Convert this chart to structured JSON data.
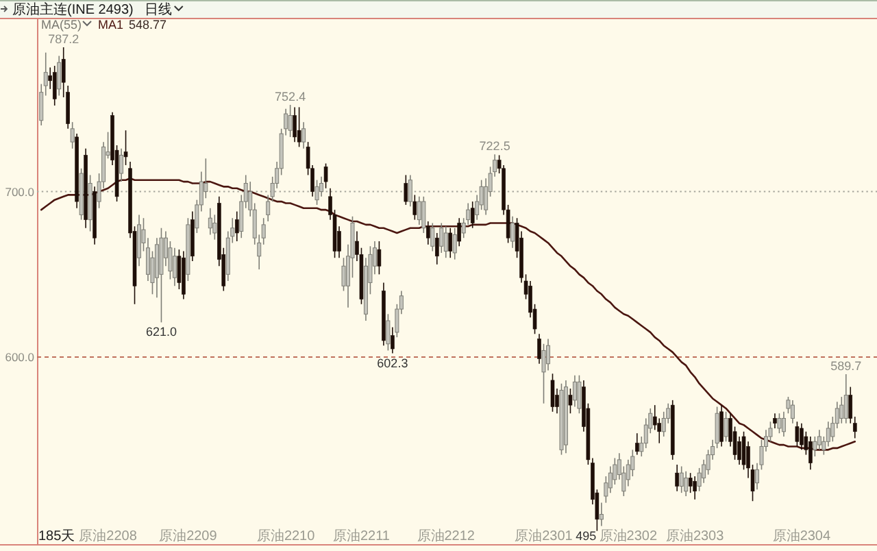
{
  "chart_data": {
    "type": "candlestick",
    "title": "原油主连(INE 2493)",
    "subtitle": "日线",
    "annotations": [
      "MA(55)",
      "548.77",
      "185天",
      {
        "text": "787.2",
        "y": 787.2
      },
      {
        "text": "621.0",
        "y": 621.0
      },
      {
        "text": "752.4",
        "y": 752.4
      },
      {
        "text": "602.3",
        "y": 602.3
      },
      {
        "text": "722.5",
        "y": 722.5
      },
      "495",
      {
        "text": "589.7",
        "y": 589.7
      }
    ],
    "categories": [
      null,
      null,
      null,
      null,
      null,
      null,
      null,
      null,
      null,
      null,
      null,
      null,
      null,
      null,
      null,
      "原油2208",
      null,
      null,
      null,
      null,
      null,
      null,
      null,
      null,
      null,
      null,
      null,
      null,
      null,
      null,
      null,
      null,
      null,
      "原油2209",
      null,
      null,
      null,
      null,
      null,
      null,
      null,
      null,
      null,
      null,
      null,
      null,
      null,
      null,
      null,
      null,
      null,
      null,
      null,
      null,
      null,
      "原油2210",
      null,
      null,
      null,
      null,
      null,
      null,
      null,
      null,
      null,
      null,
      null,
      null,
      null,
      null,
      null,
      null,
      "原油2211",
      null,
      null,
      null,
      null,
      null,
      null,
      null,
      null,
      null,
      null,
      null,
      null,
      null,
      null,
      null,
      null,
      null,
      null,
      "原油2212",
      null,
      null,
      null,
      null,
      null,
      null,
      null,
      null,
      null,
      null,
      null,
      null,
      null,
      null,
      null,
      null,
      null,
      null,
      null,
      null,
      null,
      "原油2301",
      null,
      null,
      null,
      null,
      null,
      null,
      null,
      null,
      null,
      null,
      null,
      null,
      null,
      null,
      null,
      null,
      null,
      null,
      "原油2302",
      null,
      null,
      null,
      null,
      null,
      null,
      null,
      null,
      null,
      null,
      null,
      null,
      null,
      null,
      "原油2303",
      null,
      null,
      null,
      null,
      null,
      null,
      null,
      null,
      null,
      null,
      null,
      null,
      null,
      null,
      null,
      null,
      null,
      null,
      null,
      null,
      null,
      null,
      null,
      "原油2304",
      null,
      null,
      null,
      null,
      null,
      null,
      null,
      null,
      null,
      null,
      null,
      null
    ],
    "ohlc": [
      [
        743,
        765,
        740,
        760
      ],
      [
        764,
        784,
        758,
        772
      ],
      [
        770,
        775,
        762,
        767
      ],
      [
        772,
        776,
        752,
        756
      ],
      [
        762,
        782,
        758,
        778
      ],
      [
        780,
        787.2,
        757,
        766
      ],
      [
        760,
        764,
        738,
        741
      ],
      [
        730,
        742,
        726,
        738
      ],
      [
        733,
        735,
        690,
        694
      ],
      [
        686,
        714,
        683,
        711
      ],
      [
        722,
        726,
        678,
        683
      ],
      [
        683,
        710,
        676,
        705
      ],
      [
        700,
        703,
        668,
        672
      ],
      [
        694,
        711,
        690,
        706
      ],
      [
        706,
        730,
        702,
        727
      ],
      [
        722,
        736,
        720,
        724
      ],
      [
        746,
        748,
        716,
        719
      ],
      [
        725,
        728,
        694,
        697
      ],
      [
        711,
        726,
        706,
        722
      ],
      [
        724,
        737,
        716,
        721
      ],
      [
        714,
        718,
        672,
        675
      ],
      [
        676,
        679,
        632,
        643
      ],
      [
        660,
        686,
        655,
        680
      ],
      [
        669,
        684,
        664,
        677
      ],
      [
        650,
        672,
        646,
        666
      ],
      [
        645,
        664,
        638,
        660
      ],
      [
        648,
        672,
        636,
        668
      ],
      [
        650,
        678,
        621.0,
        672
      ],
      [
        660,
        676,
        655,
        672
      ],
      [
        652,
        670,
        647,
        666
      ],
      [
        648,
        666,
        643,
        661
      ],
      [
        661,
        665,
        641,
        645
      ],
      [
        660,
        664,
        635,
        638
      ],
      [
        650,
        684,
        646,
        680
      ],
      [
        683,
        688,
        658,
        661
      ],
      [
        678,
        695,
        675,
        692
      ],
      [
        692,
        712,
        688,
        706
      ],
      [
        700,
        720,
        696,
        705
      ],
      [
        678,
        690,
        674,
        684
      ],
      [
        675,
        686,
        671,
        681
      ],
      [
        693,
        697,
        655,
        659
      ],
      [
        662,
        666,
        640,
        643
      ],
      [
        650,
        676,
        646,
        672
      ],
      [
        673,
        684,
        669,
        678
      ],
      [
        683,
        688,
        670,
        675
      ],
      [
        676,
        698,
        672,
        694
      ],
      [
        694,
        710,
        690,
        705
      ],
      [
        689,
        706,
        685,
        700
      ],
      [
        672,
        693,
        668,
        689
      ],
      [
        661,
        674,
        653,
        669
      ],
      [
        672,
        684,
        668,
        680
      ],
      [
        686,
        698,
        682,
        694
      ],
      [
        697,
        709,
        694,
        705
      ],
      [
        705,
        718,
        702,
        714
      ],
      [
        714,
        738,
        710,
        735
      ],
      [
        738,
        750,
        734,
        747
      ],
      [
        737,
        752.4,
        733,
        746
      ],
      [
        746,
        751,
        730,
        733
      ],
      [
        737,
        751,
        727,
        730
      ],
      [
        730,
        742,
        726,
        738
      ],
      [
        727,
        730,
        710,
        714
      ],
      [
        714,
        716,
        697,
        700
      ],
      [
        695,
        707,
        692,
        703
      ],
      [
        700,
        709,
        697,
        705
      ],
      [
        715,
        717,
        702,
        706
      ],
      [
        697,
        702,
        683,
        686
      ],
      [
        686,
        689,
        660,
        664
      ],
      [
        676,
        679,
        660,
        664
      ],
      [
        643,
        660,
        640,
        655
      ],
      [
        643,
        668,
        630,
        661
      ],
      [
        660,
        685,
        648,
        681
      ],
      [
        670,
        676,
        658,
        662
      ],
      [
        662,
        666,
        632,
        635
      ],
      [
        626,
        660,
        622,
        655
      ],
      [
        645,
        667,
        638,
        662
      ],
      [
        655,
        670,
        650,
        666
      ],
      [
        665,
        670,
        650,
        655
      ],
      [
        640,
        645,
        607,
        610
      ],
      [
        608,
        626,
        604,
        622
      ],
      [
        613,
        618,
        602.3,
        605
      ],
      [
        615,
        632,
        612,
        629
      ],
      [
        629,
        640,
        626,
        637
      ],
      [
        705,
        710,
        692,
        694
      ],
      [
        694,
        710,
        691,
        707
      ],
      [
        694,
        698,
        683,
        686
      ],
      [
        683,
        697,
        680,
        694
      ],
      [
        678,
        697,
        675,
        694
      ],
      [
        679,
        682,
        668,
        672
      ],
      [
        667,
        681,
        664,
        678
      ],
      [
        672,
        675,
        656,
        661
      ],
      [
        667,
        681,
        663,
        678
      ],
      [
        664,
        679,
        660,
        675
      ],
      [
        675,
        678,
        660,
        664
      ],
      [
        663,
        678,
        659,
        674
      ],
      [
        681,
        684,
        667,
        670
      ],
      [
        675,
        684,
        672,
        681
      ],
      [
        683,
        693,
        680,
        689
      ],
      [
        690,
        694,
        678,
        681
      ],
      [
        686,
        698,
        683,
        694
      ],
      [
        692,
        707,
        689,
        703
      ],
      [
        689,
        708,
        686,
        703
      ],
      [
        700,
        715,
        697,
        711
      ],
      [
        712,
        722.5,
        709,
        719
      ],
      [
        719,
        722,
        711,
        714
      ],
      [
        714,
        716,
        686,
        689
      ],
      [
        689,
        692,
        669,
        672
      ],
      [
        670,
        685,
        666,
        681
      ],
      [
        681,
        684,
        660,
        664
      ],
      [
        672,
        676,
        645,
        648
      ],
      [
        646,
        650,
        635,
        638
      ],
      [
        643,
        646,
        624,
        627
      ],
      [
        629,
        632,
        614,
        617
      ],
      [
        611,
        614,
        596,
        599
      ],
      [
        591,
        608,
        572,
        604
      ],
      [
        596,
        611,
        592,
        607
      ],
      [
        586,
        590,
        567,
        570
      ],
      [
        577,
        581,
        566,
        570
      ],
      [
        544,
        584,
        541,
        580
      ],
      [
        547,
        586,
        542,
        582
      ],
      [
        577,
        581,
        566,
        571
      ],
      [
        574,
        589,
        570,
        585
      ],
      [
        569,
        589,
        566,
        585
      ],
      [
        582,
        586,
        555,
        558
      ],
      [
        569,
        572,
        535,
        538
      ],
      [
        536,
        539,
        511,
        514
      ],
      [
        518,
        520,
        495,
        502
      ],
      [
        502,
        512,
        498,
        505
      ],
      [
        516,
        528,
        512,
        524
      ],
      [
        521,
        534,
        518,
        530
      ],
      [
        526,
        539,
        523,
        535
      ],
      [
        529,
        542,
        526,
        538
      ],
      [
        519,
        534,
        516,
        530
      ],
      [
        526,
        538,
        522,
        535
      ],
      [
        532,
        544,
        528,
        540
      ],
      [
        548,
        554,
        541,
        543
      ],
      [
        543,
        552,
        540,
        548
      ],
      [
        548,
        563,
        545,
        559
      ],
      [
        557,
        569,
        554,
        566
      ],
      [
        564,
        571,
        556,
        559
      ],
      [
        560,
        563,
        548,
        555
      ],
      [
        555,
        567,
        552,
        563
      ],
      [
        563,
        572,
        560,
        569
      ],
      [
        571,
        574,
        538,
        541
      ],
      [
        530,
        535,
        519,
        522
      ],
      [
        522,
        534,
        518,
        530
      ],
      [
        519,
        531,
        516,
        527
      ],
      [
        527,
        530,
        518,
        522
      ],
      [
        525,
        528,
        514,
        519
      ],
      [
        522,
        533,
        519,
        530
      ],
      [
        527,
        538,
        524,
        535
      ],
      [
        532,
        544,
        529,
        541
      ],
      [
        541,
        550,
        538,
        546
      ],
      [
        548,
        570,
        545,
        566
      ],
      [
        567,
        571,
        546,
        549
      ],
      [
        552,
        567,
        549,
        563
      ],
      [
        563,
        566,
        546,
        549
      ],
      [
        555,
        558,
        538,
        541
      ],
      [
        549,
        552,
        535,
        538
      ],
      [
        552,
        555,
        532,
        535
      ],
      [
        546,
        549,
        527,
        533
      ],
      [
        532,
        535,
        513,
        519
      ],
      [
        524,
        536,
        520,
        532
      ],
      [
        535,
        550,
        532,
        546
      ],
      [
        546,
        556,
        543,
        552
      ],
      [
        552,
        561,
        549,
        557
      ],
      [
        563,
        566,
        557,
        560
      ],
      [
        557,
        566,
        554,
        563
      ],
      [
        555,
        567,
        552,
        563
      ],
      [
        569,
        576,
        566,
        574
      ],
      [
        563,
        574,
        560,
        571
      ],
      [
        558,
        561,
        546,
        549
      ],
      [
        557,
        560,
        544,
        547
      ],
      [
        552,
        555,
        541,
        544
      ],
      [
        549,
        552,
        532,
        536
      ],
      [
        544,
        552,
        540,
        549
      ],
      [
        547,
        556,
        544,
        552
      ],
      [
        544,
        552,
        541,
        549
      ],
      [
        549,
        561,
        546,
        557
      ],
      [
        552,
        564,
        549,
        560
      ],
      [
        560,
        573,
        557,
        569
      ],
      [
        563,
        576,
        560,
        571
      ],
      [
        563,
        589.7,
        560,
        577
      ],
      [
        577,
        582,
        560,
        563
      ],
      [
        560,
        564,
        551,
        555
      ]
    ],
    "series": [
      {
        "name": "MA1",
        "type": "line",
        "color": "#4b1610",
        "values": [
          689,
          691,
          693,
          695,
          696,
          697,
          698,
          698,
          698,
          698,
          698,
          698,
          699,
          700,
          701,
          702,
          704,
          706,
          707,
          707,
          708,
          707,
          707,
          707,
          707,
          707,
          707,
          707,
          707,
          707,
          707,
          707,
          706,
          706,
          705,
          705,
          705,
          706,
          706,
          705,
          704,
          703,
          703,
          702,
          702,
          701,
          700,
          700,
          699,
          698,
          697,
          696,
          695,
          694,
          694,
          693,
          693,
          692,
          691,
          690,
          690,
          690,
          690,
          689,
          689,
          688,
          686,
          685,
          684,
          683,
          682,
          682,
          681,
          680,
          680,
          679,
          678,
          678,
          677,
          676,
          675,
          676,
          677,
          678,
          678,
          678,
          679,
          679,
          679,
          679,
          679,
          679,
          679,
          679,
          679,
          679,
          679,
          680,
          680,
          680,
          680,
          681,
          681,
          681,
          681,
          681,
          681,
          680,
          679,
          678,
          676,
          675,
          673,
          671,
          669,
          666,
          663,
          661,
          658,
          655,
          653,
          650,
          648,
          645,
          643,
          640,
          638,
          635,
          633,
          630,
          628,
          626,
          625,
          623,
          621,
          619,
          617,
          615,
          612,
          610,
          607,
          605,
          603,
          600,
          597,
          595,
          591,
          588,
          584,
          581,
          578,
          575,
          573,
          571,
          569,
          566,
          563,
          560,
          559,
          557,
          555,
          553,
          551,
          550,
          549,
          548,
          547,
          547,
          546,
          546,
          546,
          545,
          545,
          545,
          544,
          544,
          544,
          544,
          545,
          545,
          546,
          547,
          548,
          549
        ]
      }
    ],
    "ylim": [
      487,
      805
    ],
    "yticks": [
      {
        "value": 600,
        "label": "600.0"
      },
      {
        "value": 700,
        "label": "700.0"
      }
    ],
    "ref_lines": [
      {
        "axis": "y",
        "value": 700,
        "color": "#a6a69c",
        "line_style": "dotted"
      },
      {
        "axis": "y",
        "value": 600,
        "color": "#c0705c",
        "line_style": "dashed"
      }
    ],
    "legend": "top left"
  }
}
